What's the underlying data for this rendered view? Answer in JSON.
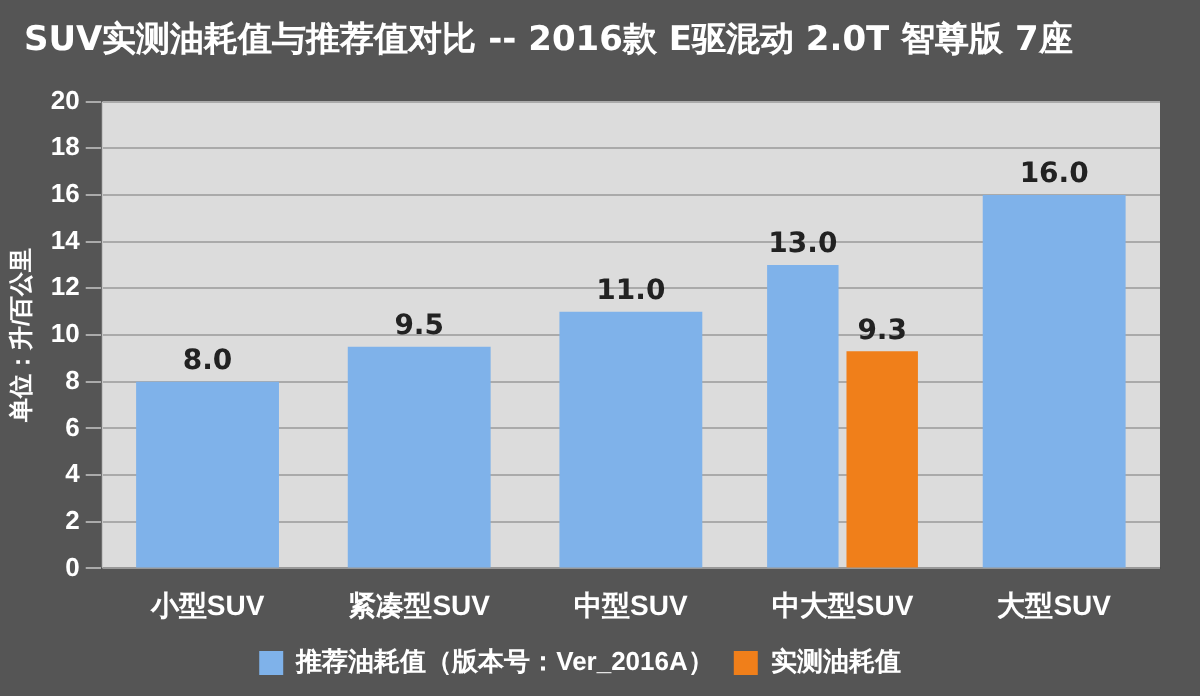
{
  "chart_data": {
    "type": "bar",
    "title": "SUV实测油耗值与推荐值对比 -- 2016款 E驱混动 2.0T 智尊版 7座",
    "ylabel": "单位：升/百公里",
    "categories": [
      "小型SUV",
      "紧凑型SUV",
      "中型SUV",
      "中大型SUV",
      "大型SUV"
    ],
    "series": [
      {
        "name": "推荐油耗值（版本号：Ver_2016A）",
        "color": "#7fb2ea",
        "values": [
          8.0,
          9.5,
          11.0,
          13.0,
          16.0
        ],
        "value_labels": [
          "8.0",
          "9.5",
          "11.0",
          "13.0",
          "16.0"
        ]
      },
      {
        "name": "实测油耗值",
        "color": "#f07f1a",
        "values": [
          null,
          null,
          null,
          9.3,
          null
        ],
        "value_labels": [
          null,
          null,
          null,
          "9.3",
          null
        ]
      }
    ],
    "ylim": [
      0,
      20
    ],
    "yticks": [
      0,
      2,
      4,
      6,
      8,
      10,
      12,
      14,
      16,
      18,
      20
    ],
    "grid": "y",
    "legend": "bottom"
  }
}
